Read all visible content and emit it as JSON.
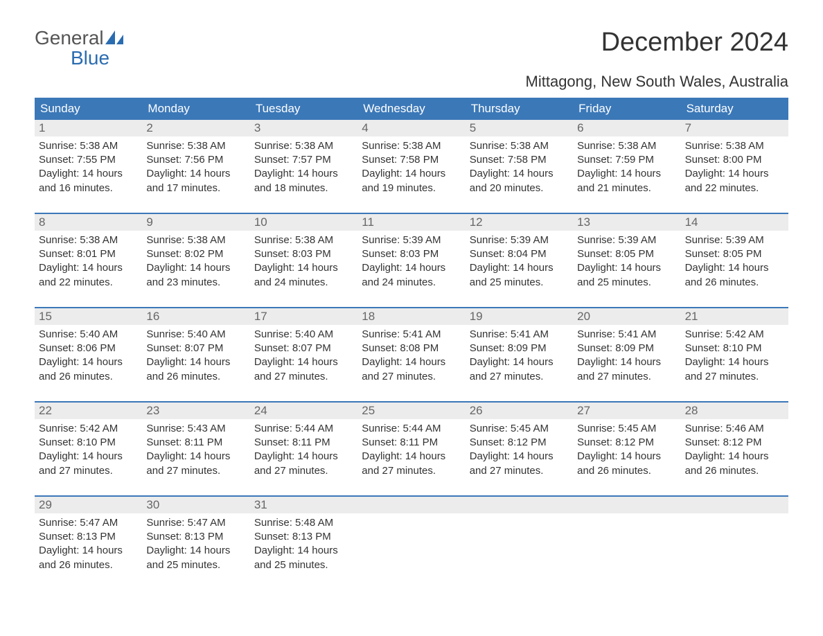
{
  "logo": {
    "word1": "General",
    "word2": "Blue"
  },
  "title": "December 2024",
  "location": "Mittagong, New South Wales, Australia",
  "colors": {
    "header_bg": "#3b78b8",
    "header_fg": "#ffffff",
    "daynum_bg": "#ececec",
    "daynum_fg": "#666666",
    "text": "#333333",
    "logo_blue": "#2b6cb0",
    "logo_gray": "#555555",
    "week_border": "#3b78b8",
    "page_bg": "#ffffff"
  },
  "fonts": {
    "title_size_pt": 29,
    "location_size_pt": 17,
    "header_size_pt": 13,
    "daynum_size_pt": 13,
    "body_size_pt": 11,
    "logo_size_pt": 21
  },
  "weekdays": [
    "Sunday",
    "Monday",
    "Tuesday",
    "Wednesday",
    "Thursday",
    "Friday",
    "Saturday"
  ],
  "weeks": [
    [
      {
        "n": "1",
        "sr": "5:38 AM",
        "ss": "7:55 PM",
        "dl": "14 hours and 16 minutes."
      },
      {
        "n": "2",
        "sr": "5:38 AM",
        "ss": "7:56 PM",
        "dl": "14 hours and 17 minutes."
      },
      {
        "n": "3",
        "sr": "5:38 AM",
        "ss": "7:57 PM",
        "dl": "14 hours and 18 minutes."
      },
      {
        "n": "4",
        "sr": "5:38 AM",
        "ss": "7:58 PM",
        "dl": "14 hours and 19 minutes."
      },
      {
        "n": "5",
        "sr": "5:38 AM",
        "ss": "7:58 PM",
        "dl": "14 hours and 20 minutes."
      },
      {
        "n": "6",
        "sr": "5:38 AM",
        "ss": "7:59 PM",
        "dl": "14 hours and 21 minutes."
      },
      {
        "n": "7",
        "sr": "5:38 AM",
        "ss": "8:00 PM",
        "dl": "14 hours and 22 minutes."
      }
    ],
    [
      {
        "n": "8",
        "sr": "5:38 AM",
        "ss": "8:01 PM",
        "dl": "14 hours and 22 minutes."
      },
      {
        "n": "9",
        "sr": "5:38 AM",
        "ss": "8:02 PM",
        "dl": "14 hours and 23 minutes."
      },
      {
        "n": "10",
        "sr": "5:38 AM",
        "ss": "8:03 PM",
        "dl": "14 hours and 24 minutes."
      },
      {
        "n": "11",
        "sr": "5:39 AM",
        "ss": "8:03 PM",
        "dl": "14 hours and 24 minutes."
      },
      {
        "n": "12",
        "sr": "5:39 AM",
        "ss": "8:04 PM",
        "dl": "14 hours and 25 minutes."
      },
      {
        "n": "13",
        "sr": "5:39 AM",
        "ss": "8:05 PM",
        "dl": "14 hours and 25 minutes."
      },
      {
        "n": "14",
        "sr": "5:39 AM",
        "ss": "8:05 PM",
        "dl": "14 hours and 26 minutes."
      }
    ],
    [
      {
        "n": "15",
        "sr": "5:40 AM",
        "ss": "8:06 PM",
        "dl": "14 hours and 26 minutes."
      },
      {
        "n": "16",
        "sr": "5:40 AM",
        "ss": "8:07 PM",
        "dl": "14 hours and 26 minutes."
      },
      {
        "n": "17",
        "sr": "5:40 AM",
        "ss": "8:07 PM",
        "dl": "14 hours and 27 minutes."
      },
      {
        "n": "18",
        "sr": "5:41 AM",
        "ss": "8:08 PM",
        "dl": "14 hours and 27 minutes."
      },
      {
        "n": "19",
        "sr": "5:41 AM",
        "ss": "8:09 PM",
        "dl": "14 hours and 27 minutes."
      },
      {
        "n": "20",
        "sr": "5:41 AM",
        "ss": "8:09 PM",
        "dl": "14 hours and 27 minutes."
      },
      {
        "n": "21",
        "sr": "5:42 AM",
        "ss": "8:10 PM",
        "dl": "14 hours and 27 minutes."
      }
    ],
    [
      {
        "n": "22",
        "sr": "5:42 AM",
        "ss": "8:10 PM",
        "dl": "14 hours and 27 minutes."
      },
      {
        "n": "23",
        "sr": "5:43 AM",
        "ss": "8:11 PM",
        "dl": "14 hours and 27 minutes."
      },
      {
        "n": "24",
        "sr": "5:44 AM",
        "ss": "8:11 PM",
        "dl": "14 hours and 27 minutes."
      },
      {
        "n": "25",
        "sr": "5:44 AM",
        "ss": "8:11 PM",
        "dl": "14 hours and 27 minutes."
      },
      {
        "n": "26",
        "sr": "5:45 AM",
        "ss": "8:12 PM",
        "dl": "14 hours and 27 minutes."
      },
      {
        "n": "27",
        "sr": "5:45 AM",
        "ss": "8:12 PM",
        "dl": "14 hours and 26 minutes."
      },
      {
        "n": "28",
        "sr": "5:46 AM",
        "ss": "8:12 PM",
        "dl": "14 hours and 26 minutes."
      }
    ],
    [
      {
        "n": "29",
        "sr": "5:47 AM",
        "ss": "8:13 PM",
        "dl": "14 hours and 26 minutes."
      },
      {
        "n": "30",
        "sr": "5:47 AM",
        "ss": "8:13 PM",
        "dl": "14 hours and 25 minutes."
      },
      {
        "n": "31",
        "sr": "5:48 AM",
        "ss": "8:13 PM",
        "dl": "14 hours and 25 minutes."
      },
      null,
      null,
      null,
      null
    ]
  ]
}
